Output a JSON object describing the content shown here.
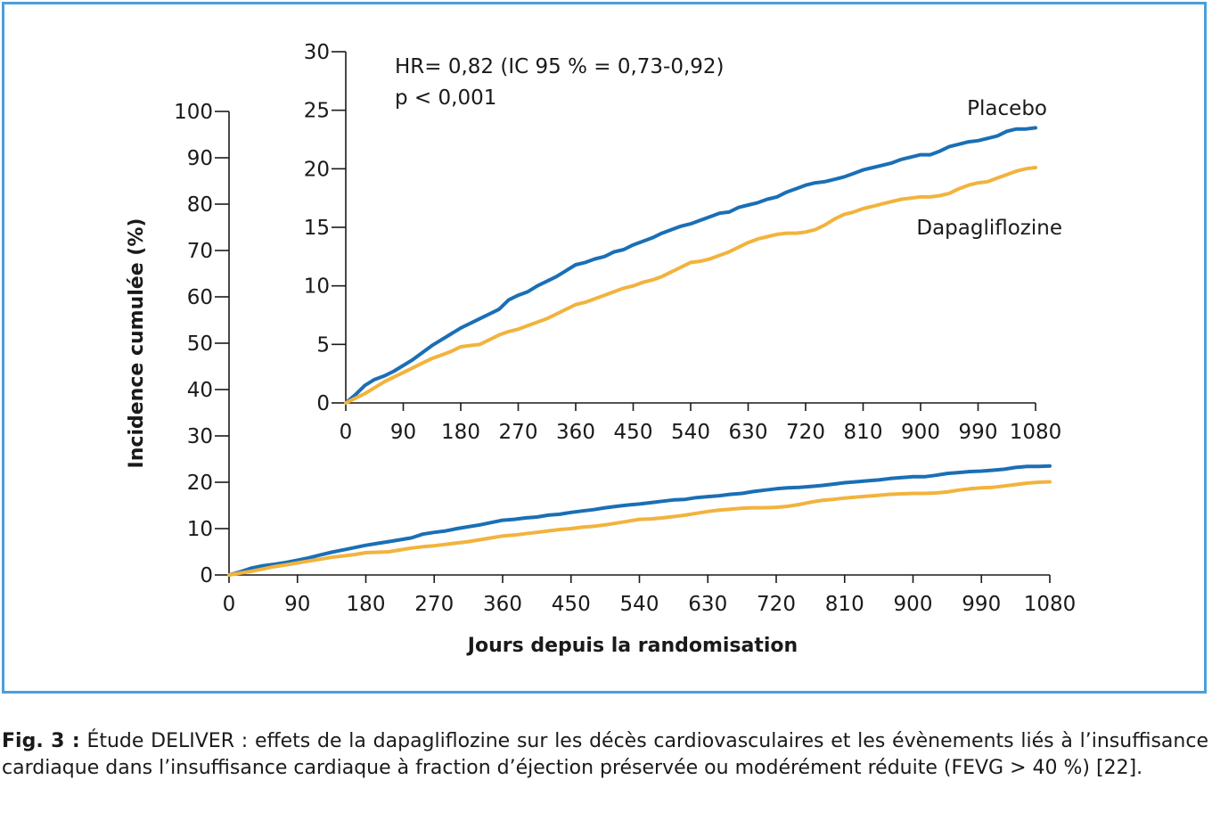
{
  "chart_data": [
    {
      "type": "line",
      "ylabel": "Incidence cumulée (%)",
      "xlabel": "Jours depuis la randomisation",
      "xlim": [
        0,
        1080
      ],
      "ylim": [
        0,
        100
      ],
      "x_ticks": [
        "0",
        "90",
        "180",
        "270",
        "360",
        "450",
        "540",
        "630",
        "720",
        "810",
        "900",
        "990",
        "1080"
      ],
      "y_ticks": [
        "0",
        "10",
        "20",
        "30",
        "40",
        "50",
        "60",
        "70",
        "80",
        "90",
        "100"
      ],
      "series": [
        {
          "name": "Placebo",
          "color": "#1a6fb5",
          "x": [
            0,
            15,
            30,
            45,
            60,
            75,
            90,
            105,
            120,
            135,
            150,
            165,
            180,
            195,
            210,
            225,
            240,
            255,
            270,
            285,
            300,
            315,
            330,
            345,
            360,
            375,
            390,
            405,
            420,
            435,
            450,
            465,
            480,
            495,
            510,
            525,
            540,
            555,
            570,
            585,
            600,
            615,
            630,
            645,
            660,
            675,
            690,
            705,
            720,
            735,
            750,
            765,
            780,
            795,
            810,
            825,
            840,
            855,
            870,
            885,
            900,
            915,
            930,
            945,
            960,
            975,
            990,
            1005,
            1020,
            1035,
            1050,
            1065,
            1080
          ],
          "y": [
            0,
            0.7,
            1.5,
            2.0,
            2.3,
            2.7,
            3.2,
            3.7,
            4.3,
            4.9,
            5.4,
            5.9,
            6.4,
            6.8,
            7.2,
            7.6,
            8.0,
            8.8,
            9.2,
            9.5,
            10.0,
            10.4,
            10.8,
            11.3,
            11.8,
            12.0,
            12.3,
            12.5,
            12.9,
            13.1,
            13.5,
            13.8,
            14.1,
            14.5,
            14.8,
            15.1,
            15.3,
            15.6,
            15.9,
            16.2,
            16.3,
            16.7,
            16.9,
            17.1,
            17.4,
            17.6,
            18.0,
            18.3,
            18.6,
            18.8,
            18.9,
            19.1,
            19.3,
            19.6,
            19.9,
            20.1,
            20.3,
            20.5,
            20.8,
            21.0,
            21.2,
            21.2,
            21.5,
            21.9,
            22.1,
            22.3,
            22.4,
            22.6,
            22.8,
            23.2,
            23.4,
            23.4,
            23.5
          ]
        },
        {
          "name": "Dapagliflozine",
          "color": "#f2b33d",
          "x": [
            0,
            15,
            30,
            45,
            60,
            75,
            90,
            105,
            120,
            135,
            150,
            165,
            180,
            195,
            210,
            225,
            240,
            255,
            270,
            285,
            300,
            315,
            330,
            345,
            360,
            375,
            390,
            405,
            420,
            435,
            450,
            465,
            480,
            495,
            510,
            525,
            540,
            555,
            570,
            585,
            600,
            615,
            630,
            645,
            660,
            675,
            690,
            705,
            720,
            735,
            750,
            765,
            780,
            795,
            810,
            825,
            840,
            855,
            870,
            885,
            900,
            915,
            930,
            945,
            960,
            975,
            990,
            1005,
            1020,
            1035,
            1050,
            1065,
            1080
          ],
          "y": [
            0,
            0.4,
            0.8,
            1.3,
            1.8,
            2.2,
            2.6,
            3.0,
            3.4,
            3.8,
            4.1,
            4.4,
            4.8,
            4.9,
            5.0,
            5.4,
            5.8,
            6.1,
            6.3,
            6.6,
            6.9,
            7.2,
            7.6,
            8.0,
            8.4,
            8.6,
            8.9,
            9.2,
            9.5,
            9.8,
            10.0,
            10.3,
            10.5,
            10.8,
            11.2,
            11.6,
            12.0,
            12.1,
            12.3,
            12.6,
            12.9,
            13.3,
            13.7,
            14.0,
            14.2,
            14.4,
            14.5,
            14.5,
            14.6,
            14.8,
            15.2,
            15.7,
            16.1,
            16.3,
            16.6,
            16.8,
            17.0,
            17.2,
            17.4,
            17.5,
            17.6,
            17.6,
            17.7,
            17.9,
            18.3,
            18.6,
            18.8,
            18.9,
            19.2,
            19.5,
            19.8,
            20.0,
            20.1
          ]
        }
      ]
    },
    {
      "type": "line",
      "xlim": [
        0,
        1080
      ],
      "ylim": [
        0,
        30
      ],
      "x_ticks": [
        "0",
        "90",
        "180",
        "270",
        "360",
        "450",
        "540",
        "630",
        "720",
        "810",
        "900",
        "990",
        "1080"
      ],
      "y_ticks": [
        "0",
        "5",
        "10",
        "15",
        "20",
        "25",
        "30"
      ],
      "annotations": [
        "HR= 0,82 (IC 95 % = 0,73-0,92)",
        "p < 0,001"
      ],
      "series_labels": [
        "Placebo",
        "Dapagliflozine"
      ]
    }
  ],
  "caption": {
    "label": "Fig. 3 :",
    "text": "Étude DELIVER : effets de la dapagliflozine sur les décès cardiovasculaires et les évènements liés à l’insuffisance cardiaque dans l’insuffisance cardiaque à fraction d’éjection préservée ou modérément réduite (FEVG > 40 %) [22]."
  },
  "colors": {
    "frame": "#4a9fd8",
    "placebo": "#1a6fb5",
    "dapagliflozine": "#f2b33d"
  }
}
